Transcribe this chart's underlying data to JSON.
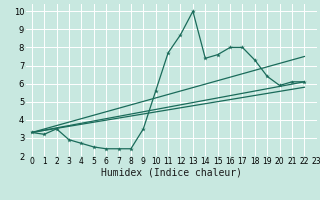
{
  "title": "",
  "xlabel": "Humidex (Indice chaleur)",
  "xlim": [
    -0.5,
    23
  ],
  "ylim": [
    2,
    10.4
  ],
  "xticks": [
    0,
    1,
    2,
    3,
    4,
    5,
    6,
    7,
    8,
    9,
    10,
    11,
    12,
    13,
    14,
    15,
    16,
    17,
    18,
    19,
    20,
    21,
    22,
    23
  ],
  "yticks": [
    2,
    3,
    4,
    5,
    6,
    7,
    8,
    9,
    10
  ],
  "background_color": "#c8e8e0",
  "grid_color": "#ffffff",
  "line_color": "#1a6b5a",
  "main_series": {
    "x": [
      0,
      1,
      2,
      3,
      4,
      5,
      6,
      7,
      8,
      9,
      10,
      11,
      12,
      13,
      14,
      15,
      16,
      17,
      18,
      19,
      20,
      21,
      22
    ],
    "y": [
      3.3,
      3.2,
      3.5,
      2.9,
      2.7,
      2.5,
      2.4,
      2.4,
      2.4,
      3.5,
      5.6,
      7.7,
      8.7,
      10.0,
      7.4,
      7.6,
      8.0,
      8.0,
      7.3,
      6.4,
      5.9,
      6.1,
      6.1
    ]
  },
  "trend_lines": [
    {
      "x": [
        0,
        22
      ],
      "y": [
        3.3,
        6.1
      ]
    },
    {
      "x": [
        0,
        22
      ],
      "y": [
        3.3,
        7.5
      ]
    },
    {
      "x": [
        0,
        22
      ],
      "y": [
        3.3,
        5.8
      ]
    }
  ],
  "xlabel_fontsize": 7,
  "tick_fontsize": 6
}
